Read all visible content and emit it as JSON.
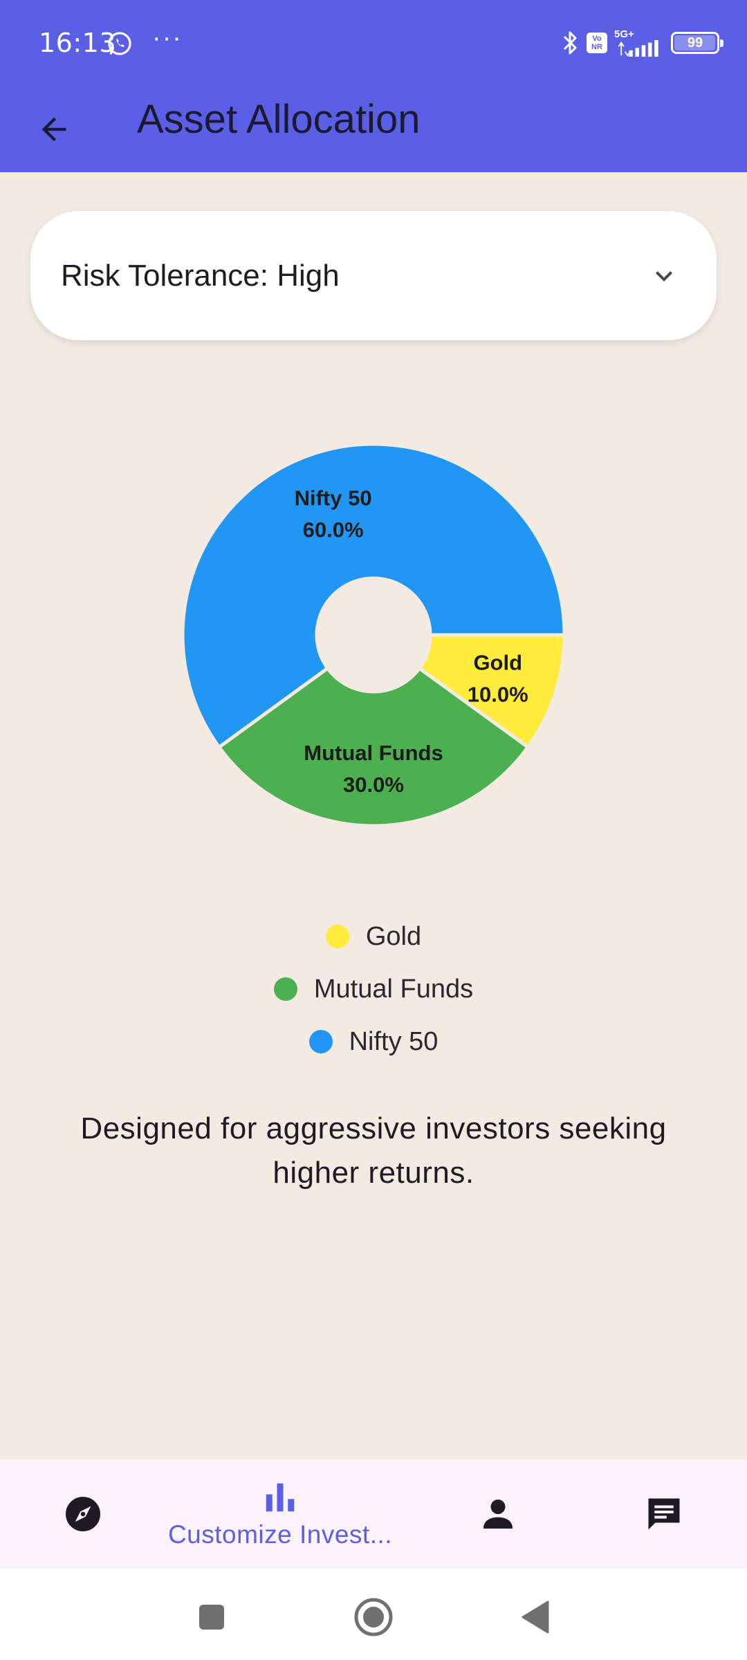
{
  "status_bar": {
    "time": "16:13",
    "more": "···",
    "network": "5G+",
    "volte_badge": "Vo NR",
    "battery": "99",
    "battery_level": 0.99
  },
  "app_bar": {
    "title": "Asset Allocation",
    "back_icon": "arrow-back-icon"
  },
  "dropdown": {
    "label": "Risk Tolerance: High",
    "icon": "chevron-down-icon"
  },
  "colors": {
    "primary": "#5a5fe6",
    "background": "#f3ebe2",
    "nifty": "#2196f3",
    "mutual_funds": "#4caf50",
    "gold": "#ffeb3b"
  },
  "chart_data": {
    "type": "pie",
    "donut": true,
    "slices": [
      {
        "name": "Gold",
        "value": 10.0,
        "label": "10.0%",
        "color": "#ffeb3b"
      },
      {
        "name": "Mutual Funds",
        "value": 30.0,
        "label": "30.0%",
        "color": "#4caf50"
      },
      {
        "name": "Nifty 50",
        "value": 60.0,
        "label": "60.0%",
        "color": "#2196f3"
      }
    ],
    "legend": [
      "Gold",
      "Mutual Funds",
      "Nifty 50"
    ],
    "legend_placement": "bottom"
  },
  "legend": [
    {
      "label": "Gold",
      "color": "#ffeb3b"
    },
    {
      "label": "Mutual Funds",
      "color": "#4caf50"
    },
    {
      "label": "Nifty 50",
      "color": "#2196f3"
    }
  ],
  "description": "Designed for aggressive investors seeking higher returns.",
  "bottom_nav": {
    "items": [
      {
        "icon": "compass-icon",
        "label": ""
      },
      {
        "icon": "bar-chart-icon",
        "label": "Customize Invest..."
      },
      {
        "icon": "person-icon",
        "label": ""
      },
      {
        "icon": "chat-icon",
        "label": ""
      }
    ]
  },
  "system_nav": [
    "recents-square-icon",
    "home-circle-icon",
    "back-triangle-icon"
  ]
}
